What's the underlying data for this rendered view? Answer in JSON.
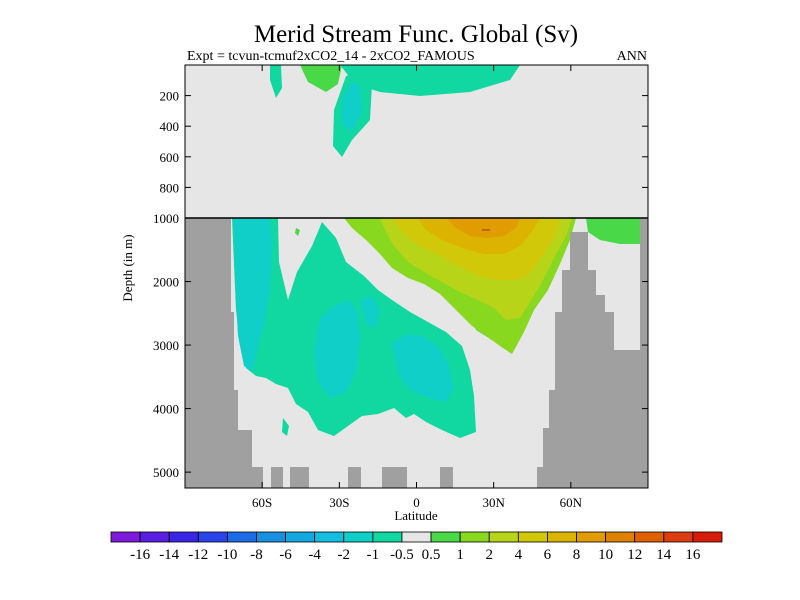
{
  "chart_data": {
    "type": "heatmap",
    "title": "Merid Stream Func. Global (Sv)",
    "subtitle_left": "Expt = tcvun-tcmuf2xCO2_14 - 2xCO2_FAMOUS",
    "subtitle_right": "ANN",
    "xlabel": "Latitude",
    "ylabel": "Depth (in m)",
    "xlim": [
      -90,
      90
    ],
    "top_panel": {
      "ylim": [
        0,
        1000
      ],
      "yticks": [
        200,
        400,
        600,
        800,
        1000
      ],
      "ytick_labels": [
        "200",
        "400",
        "600",
        "800",
        "1000"
      ]
    },
    "bottom_panel": {
      "ylim": [
        1000,
        5250
      ],
      "yticks": [
        2000,
        3000,
        4000,
        5000
      ],
      "ytick_labels": [
        "2000",
        "3000",
        "4000",
        "5000"
      ]
    },
    "xticks": [
      -60,
      -30,
      0,
      30,
      60
    ],
    "xtick_labels": [
      "60S",
      "30S",
      "0",
      "30N",
      "60N"
    ],
    "background_color": "#e6e6e6",
    "land_color": "#a0a0a0",
    "colorbar": {
      "labels": [
        "-16",
        "-14",
        "-12",
        "-10",
        "-8",
        "-6",
        "-4",
        "-2",
        "-1",
        "-0.5",
        "0.5",
        "1",
        "2",
        "4",
        "6",
        "8",
        "10",
        "12",
        "14",
        "16"
      ],
      "colors": [
        "#7d1adc",
        "#5a1ee0",
        "#3a24e6",
        "#2a44ea",
        "#1c6ce8",
        "#1890e0",
        "#14a8e0",
        "#14bee0",
        "#10cfc8",
        "#10d8a0",
        "#e6e6e6",
        "#48d848",
        "#88d820",
        "#b8d418",
        "#d0c808",
        "#dcb400",
        "#e09c00",
        "#e08000",
        "#e06000",
        "#dc3c10",
        "#d81c08"
      ]
    },
    "contour_regions": [
      {
        "level": "1 to 2",
        "color": "#48d848",
        "lat": [
          18,
          31
        ],
        "depth": [
          1250,
          2550
        ]
      },
      {
        "level": "2 to 4",
        "color": "#88d820",
        "lat": [
          -10,
          48
        ],
        "depth": [
          1000,
          2950
        ]
      },
      {
        "level": "4 to 6",
        "color": "#b8d418",
        "lat": [
          -2,
          40
        ],
        "depth": [
          1000,
          2500
        ]
      },
      {
        "level": "6 to 8",
        "color": "#d0c808",
        "lat": [
          4,
          32
        ],
        "depth": [
          1000,
          1850
        ]
      },
      {
        "level": "8 to 10",
        "color": "#dcb400",
        "lat": [
          12,
          30
        ],
        "depth": [
          1000,
          1350
        ]
      },
      {
        "level": "-1 to -0.5",
        "color": "#10d8a0",
        "lat": [
          -72,
          22
        ],
        "depth": [
          1000,
          4450
        ]
      },
      {
        "level": "-2 to -1",
        "color": "#10cfc8",
        "lat": [
          -71,
          -58
        ],
        "depth": [
          1000,
          2250
        ]
      },
      {
        "level": "-2 to -1",
        "color": "#10cfc8",
        "lat": [
          -38,
          -28
        ],
        "depth": [
          2500,
          3900
        ]
      },
      {
        "level": "-2 to -1",
        "color": "#10cfc8",
        "lat": [
          -8,
          12
        ],
        "depth": [
          2800,
          3950
        ]
      },
      {
        "level": "-2 to -1",
        "color": "#10cfc8",
        "lat": [
          -30,
          -20
        ],
        "depth": [
          200,
          600
        ]
      },
      {
        "level": "-1 to -0.5",
        "color": "#10d8a0",
        "lat": [
          -35,
          -14
        ],
        "depth": [
          40,
          630
        ]
      },
      {
        "level": "0.5 to 1",
        "color": "#48d848",
        "lat": [
          -35,
          -22
        ],
        "depth": [
          0,
          110
        ]
      },
      {
        "level": "0.5 to 1",
        "color": "#48d848",
        "lat": [
          70,
          81
        ],
        "depth": [
          1000,
          1400
        ]
      }
    ]
  }
}
